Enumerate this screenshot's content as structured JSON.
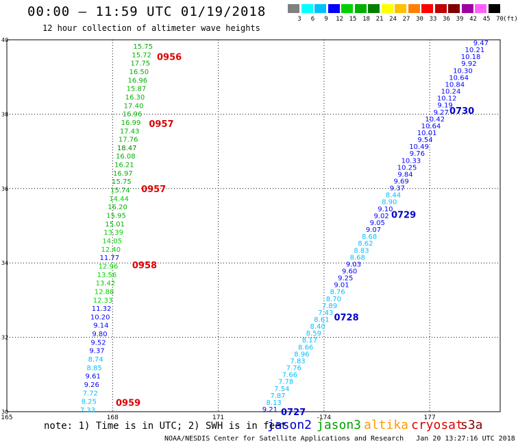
{
  "header": {
    "title": "00:00 — 11:59 UTC 01/19/2018",
    "subtitle": "12 hour collection of altimeter wave heights"
  },
  "color_scale": {
    "labels": [
      "3",
      "6",
      "9",
      "12",
      "15",
      "18",
      "21",
      "24",
      "27",
      "30",
      "33",
      "36",
      "39",
      "42",
      "45",
      "70"
    ],
    "unit": "(ft)",
    "colors": [
      "#808080",
      "#00ffff",
      "#00c0ff",
      "#0000ff",
      "#00d000",
      "#00b000",
      "#008000",
      "#ffff00",
      "#ffc000",
      "#ff8000",
      "#ff0000",
      "#c00000",
      "#800000",
      "#a000a0",
      "#ff60ff",
      "#000000"
    ]
  },
  "note": "note: 1) Time is in UTC; 2) SWH is in feet",
  "legend": [
    {
      "name": "jason2",
      "color": "#0000cc"
    },
    {
      "name": "jason3",
      "color": "#00a000"
    },
    {
      "name": "altika",
      "color": "#ff9900"
    },
    {
      "name": "cryosat",
      "color": "#dd0000"
    },
    {
      "name": "s3a",
      "color": "#880000"
    }
  ],
  "credit": "NOAA/NESDIS Center for Satellite Applications and Research   Jan 20 13:27:16 UTC 2018",
  "chart_data": {
    "type": "scatter",
    "xlim": [
      165,
      179
    ],
    "ylim": [
      30,
      40
    ],
    "x_ticks": [
      165,
      168,
      171,
      174,
      177
    ],
    "x_tick_labels": [
      "165",
      "168",
      "171",
      "-174",
      "177"
    ],
    "y_ticks": [
      30,
      32,
      34,
      36,
      38,
      40
    ],
    "grid": true,
    "series": [
      {
        "name": "cryosat",
        "track": "left",
        "values": [
          "15.75",
          "15.72",
          "17.75",
          "16.50",
          "16.96",
          "15.87",
          "16.30",
          "17.40",
          "16.96",
          "16.99",
          "17.43",
          "17.76",
          "18.47",
          "16.08",
          "16.21",
          "16.97",
          "15.75",
          "15.74",
          "14.44",
          "16.20",
          "15.95",
          "15.01",
          "13.39",
          "14.05",
          "12.40",
          "11.77",
          "12.96",
          "13.56",
          "13.42",
          "12.88",
          "12.33",
          "11.32",
          "10.20",
          "9.14",
          "9.80",
          "9.52",
          "9.37",
          "8.74",
          "8.85",
          "9.61",
          "9.26",
          "7.72",
          "8.25",
          "7.33"
        ],
        "times": [
          {
            "label": "0956",
            "lat": 39.55
          },
          {
            "label": "0957",
            "lat": 37.75
          },
          {
            "label": "0957",
            "lat": 36.0
          },
          {
            "label": "0958",
            "lat": 33.95
          },
          {
            "label": "0959",
            "lat": 30.25
          }
        ]
      },
      {
        "name": "jason2",
        "track": "right",
        "values": [
          "9.47",
          "10.21",
          "10.18",
          "9.92",
          "10.30",
          "10.64",
          "10.84",
          "10.24",
          "10.12",
          "9.19",
          "9.27",
          "10.42",
          "10.64",
          "10.01",
          "9.54",
          "10.49",
          "9.76",
          "10.33",
          "10.25",
          "9.84",
          "9.69",
          "9.37",
          "8.44",
          "8.90",
          "9.10",
          "9.02",
          "9.05",
          "9.07",
          "8.68",
          "8.62",
          "8.83",
          "8.68",
          "9.03",
          "9.60",
          "9.25",
          "9.01",
          "8.76",
          "8.70",
          "7.89",
          "7.43",
          "8.61",
          "8.40",
          "8.59",
          "8.17",
          "8.66",
          "8.96",
          "7.83",
          "7.76",
          "7.66",
          "7.78",
          "7.54",
          "7.87",
          "8.13",
          "9.21"
        ],
        "times": [
          {
            "label": "0730",
            "lat": 38.1
          },
          {
            "label": "0729",
            "lat": 35.3
          },
          {
            "label": "0728",
            "lat": 32.55
          },
          {
            "label": "0727",
            "lat": 30.0
          }
        ]
      }
    ]
  }
}
